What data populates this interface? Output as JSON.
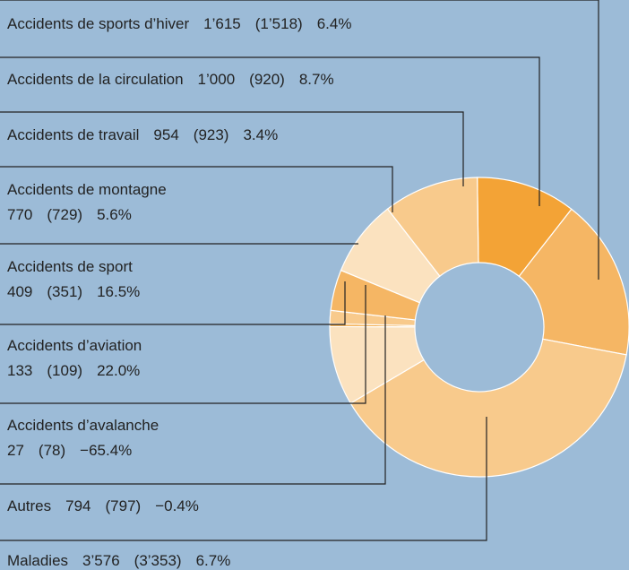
{
  "chart_data": {
    "type": "pie",
    "donut": true,
    "categories": [
      "Accidents de sports d’hiver",
      "Accidents de la circulation",
      "Accidents de travail",
      "Accidents de montagne",
      "Accidents de sport",
      "Accidents d’aviation",
      "Accidents d’avalanche",
      "Autres",
      "Maladies"
    ],
    "values": [
      1615,
      1000,
      954,
      770,
      409,
      133,
      27,
      794,
      3576
    ],
    "value_labels": [
      "1’615",
      "1’000",
      "954",
      "770",
      "409",
      "133",
      "27",
      "794",
      "3’576"
    ],
    "previous_values": [
      1518,
      920,
      923,
      729,
      351,
      109,
      78,
      797,
      3353
    ],
    "previous_labels": [
      "(1’518)",
      "(920)",
      "(923)",
      "(729)",
      "(351)",
      "(109)",
      "(78)",
      "(797)",
      "(3’353)"
    ],
    "change": [
      6.4,
      8.7,
      3.4,
      5.6,
      16.5,
      22.0,
      -65.4,
      -0.4,
      6.7
    ],
    "change_labels": [
      "6.4%",
      "8.7%",
      "3.4%",
      "5.6%",
      "16.5%",
      "22.0%",
      "−65.4%",
      "−0.4%",
      "6.7%"
    ],
    "colors": [
      "#f5b664",
      "#f3a336",
      "#f8ca8c",
      "#fbe2bf",
      "#f5b664",
      "#f8ca8c",
      "#f3a336",
      "#fbe2bf",
      "#f8ca8c"
    ]
  }
}
